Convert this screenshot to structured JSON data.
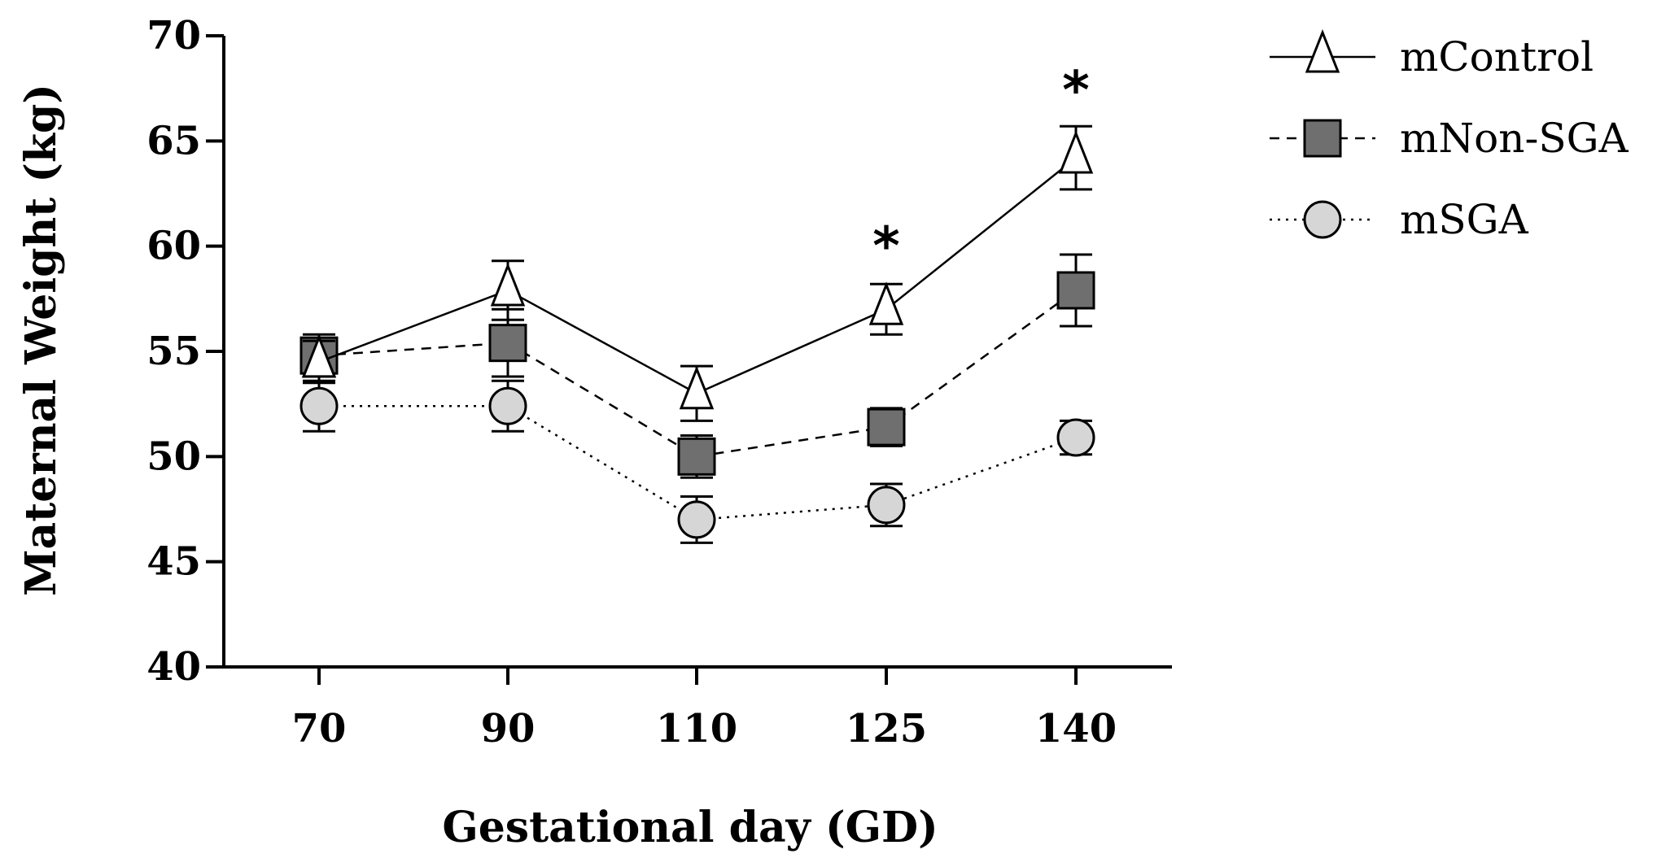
{
  "chart_data": {
    "type": "line",
    "title": "",
    "xlabel": "Gestational day (GD)",
    "ylabel": "Maternal Weight (kg)",
    "categories": [
      "70",
      "90",
      "110",
      "125",
      "140"
    ],
    "ylim": [
      40,
      70
    ],
    "yticks": [
      "40",
      "45",
      "50",
      "55",
      "60",
      "65",
      "70"
    ],
    "grid": false,
    "legend_position": "top-right",
    "series": [
      {
        "name": "mControl",
        "values": [
          54.5,
          57.9,
          53.0,
          57.0,
          64.2
        ],
        "errors": [
          1.0,
          1.4,
          1.3,
          1.2,
          1.5
        ],
        "marker": "triangle",
        "line_style": "solid",
        "fill": "#ffffff",
        "color": "#000000"
      },
      {
        "name": "mNon-SGA",
        "values": [
          54.8,
          55.4,
          50.0,
          51.4,
          57.9
        ],
        "errors": [
          1.0,
          1.6,
          1.0,
          0.9,
          1.7
        ],
        "marker": "square",
        "line_style": "dashed",
        "fill": "#6f6f6f",
        "color": "#000000"
      },
      {
        "name": "mSGA",
        "values": [
          52.4,
          52.4,
          47.0,
          47.7,
          50.9
        ],
        "errors": [
          1.2,
          1.2,
          1.1,
          1.0,
          0.8
        ],
        "marker": "circle",
        "line_style": "dotted",
        "fill": "#d6d6d6",
        "color": "#000000"
      }
    ],
    "annotations": [
      {
        "x": "125",
        "y": 60.7,
        "text": "*"
      },
      {
        "x": "140",
        "y": 68.1,
        "text": "*"
      }
    ]
  }
}
